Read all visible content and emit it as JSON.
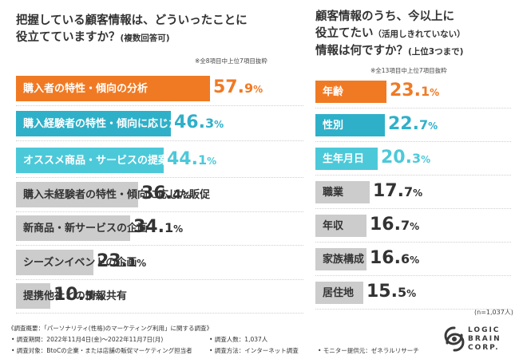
{
  "left_title_line1": "把握している顧客情報は、どういったことに",
  "left_title_line2": "役立てていますか？",
  "left_title_suffix": "(複数回答可)",
  "left_note": "※全8項目中上位7項目抜粋",
  "right_title_line1": "顧客情報のうち、今以上に",
  "right_title_line2": "役立てたい",
  "right_title_line2_suffix": "（活用しきれていない）",
  "right_title_line3": "情報は何ですか？",
  "right_title_line3_suffix": "(上位3つまで)",
  "right_note": "※全13項目中上位7項目抜粋",
  "sample_note": "(n=1,037人)",
  "colors": {
    "orange": "#f07a24",
    "blue": "#2fb0c9",
    "cyan": "#4cc9d9",
    "gray": "#cccccc",
    "dark": "#333333"
  },
  "chart_data": [
    {
      "type": "bar",
      "orientation": "horizontal",
      "title": "把握している顧客情報は、どういったことに役立てていますか？(複数回答可)",
      "unit": "%",
      "categories": [
        "購入者の特性・傾向の分析",
        "購入経験者の特性・傾向に応じた販促",
        "オススメ商品・サービスの提案",
        "購入未経験者の特性・傾向に応じた販促",
        "新商品・新サービスの企画",
        "シーズンイベントの企画",
        "提携他社との情報共有"
      ],
      "values": [
        57.9,
        46.3,
        44.1,
        36.4,
        34.1,
        23.1,
        10.3
      ],
      "value_labels": [
        [
          "57.",
          "9",
          "%"
        ],
        [
          "46.",
          "3",
          "%"
        ],
        [
          "44.",
          "1",
          "%"
        ],
        [
          "36.",
          "4",
          "%"
        ],
        [
          "34.",
          "1",
          "%"
        ],
        [
          "23.",
          "1",
          "%"
        ],
        [
          "10.",
          "3",
          "%"
        ]
      ]
    },
    {
      "type": "bar",
      "orientation": "horizontal",
      "title": "顧客情報のうち、今以上に役立てたい（活用しきれていない）情報は何ですか？(上位3つまで)",
      "unit": "%",
      "categories": [
        "年齢",
        "性別",
        "生年月日",
        "職業",
        "年収",
        "家族構成",
        "居住地"
      ],
      "values": [
        23.1,
        22.7,
        20.3,
        17.7,
        16.7,
        16.6,
        15.5
      ],
      "value_labels": [
        [
          "23.",
          "1",
          "%"
        ],
        [
          "22.",
          "7",
          "%"
        ],
        [
          "20.",
          "3",
          "%"
        ],
        [
          "17.",
          "7",
          "%"
        ],
        [
          "16.",
          "7",
          "%"
        ],
        [
          "16.",
          "6",
          "%"
        ],
        [
          "15.",
          "5",
          "%"
        ]
      ]
    }
  ],
  "footer": {
    "survey": "《調査概要：「パーソナリティ(性格)のマーケティング利用」に関する調査》",
    "period": "• 調査期間：2022年11月4日(金)～2022年11月7日(月)",
    "count": "• 調査人数：1,037人",
    "target": "• 調査対象：BtoCの企業・または店舗の販促マーケティング担当者",
    "method": "• 調査方法：インターネット調査",
    "provider": "• モニター提供元：ゼネラルリサーチ"
  },
  "logo": {
    "line1": "LOGIC",
    "line2": "BRAIN",
    "line3": "CORP."
  }
}
